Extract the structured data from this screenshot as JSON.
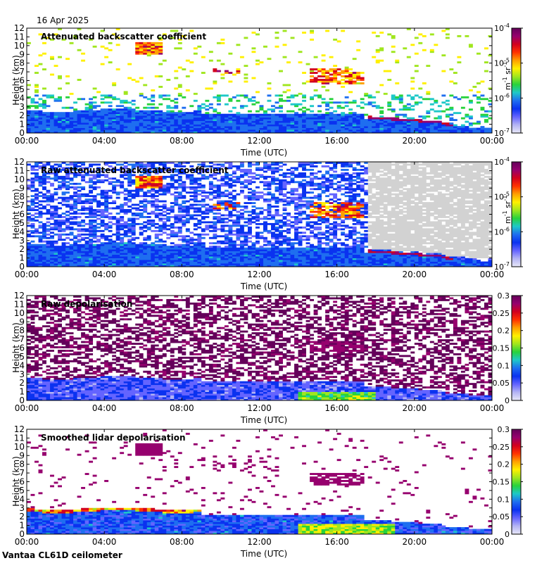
{
  "date_label": "16 Apr 2025",
  "instrument_label": "Vantaa CL61D ceilometer",
  "colors": {
    "cmap": [
      "#e8e8f8",
      "#b4b4f4",
      "#6464ff",
      "#0a32f0",
      "#1e6ef0",
      "#1ec8c8",
      "#28d23c",
      "#a0e61e",
      "#fff000",
      "#ffa000",
      "#ff3200",
      "#d2001e",
      "#96006e",
      "#64005a"
    ],
    "no_signal": "#d2d2d2"
  },
  "chart_data": [
    {
      "type": "heatmap",
      "title": "Attenuated backscatter coefficient",
      "xlabel": "Time (UTC)",
      "ylabel": "Height (km)",
      "x_ticks": [
        "00:00",
        "04:00",
        "08:00",
        "12:00",
        "16:00",
        "20:00",
        "00:00"
      ],
      "y_ticks": [
        "0",
        "1",
        "2",
        "3",
        "4",
        "5",
        "6",
        "7",
        "8",
        "9",
        "10",
        "11",
        "12"
      ],
      "xlim_hours": [
        0,
        24
      ],
      "ylim_km": [
        0,
        12
      ],
      "colorbar": {
        "scale": "log",
        "unit": "m",
        "unit_exp": "-1",
        "unit2": " sr",
        "unit2_exp": "-1",
        "ticks": [
          {
            "base": "10",
            "exp": "-4"
          },
          {
            "base": "10",
            "exp": "-5"
          },
          {
            "base": "10",
            "exp": "-6"
          },
          {
            "base": "10",
            "exp": "-7"
          }
        ]
      }
    },
    {
      "type": "heatmap",
      "title": "Raw attenuated backscatter coefficient",
      "xlabel": "Time (UTC)",
      "ylabel": "Height (km)",
      "x_ticks": [
        "00:00",
        "04:00",
        "08:00",
        "12:00",
        "16:00",
        "20:00",
        "00:00"
      ],
      "y_ticks": [
        "0",
        "1",
        "2",
        "3",
        "4",
        "5",
        "6",
        "7",
        "8",
        "9",
        "10",
        "11",
        "12"
      ],
      "xlim_hours": [
        0,
        24
      ],
      "ylim_km": [
        0,
        12
      ],
      "colorbar": {
        "scale": "log",
        "unit": "m",
        "unit_exp": "-1",
        "unit2": " sr",
        "unit2_exp": "-1",
        "ticks": [
          {
            "base": "10",
            "exp": "-4"
          },
          {
            "base": "10",
            "exp": "-5"
          },
          {
            "base": "10",
            "exp": "-6"
          },
          {
            "base": "10",
            "exp": "-7"
          }
        ]
      }
    },
    {
      "type": "heatmap",
      "title": "Raw depolarisation",
      "xlabel": "Time (UTC)",
      "ylabel": "Height (km)",
      "x_ticks": [
        "00:00",
        "04:00",
        "08:00",
        "12:00",
        "16:00",
        "20:00",
        "00:00"
      ],
      "y_ticks": [
        "0",
        "1",
        "2",
        "3",
        "4",
        "5",
        "6",
        "7",
        "8",
        "9",
        "10",
        "11",
        "12"
      ],
      "xlim_hours": [
        0,
        24
      ],
      "ylim_km": [
        0,
        12
      ],
      "colorbar": {
        "scale": "linear",
        "ticks": [
          "0.3",
          "0.25",
          "0.2",
          "0.15",
          "0.1",
          "0.05",
          "0"
        ]
      }
    },
    {
      "type": "heatmap",
      "title": "Smoothed lidar depolarisation",
      "xlabel": "Time (UTC)",
      "ylabel": "Height (km)",
      "x_ticks": [
        "00:00",
        "04:00",
        "08:00",
        "12:00",
        "16:00",
        "20:00",
        "00:00"
      ],
      "y_ticks": [
        "0",
        "1",
        "2",
        "3",
        "4",
        "5",
        "6",
        "7",
        "8",
        "9",
        "10",
        "11",
        "12"
      ],
      "xlim_hours": [
        0,
        24
      ],
      "ylim_km": [
        0,
        12
      ],
      "colorbar": {
        "scale": "linear",
        "ticks": [
          "0.3",
          "0.25",
          "0.2",
          "0.15",
          "0.1",
          "0.05",
          "0"
        ]
      }
    }
  ]
}
